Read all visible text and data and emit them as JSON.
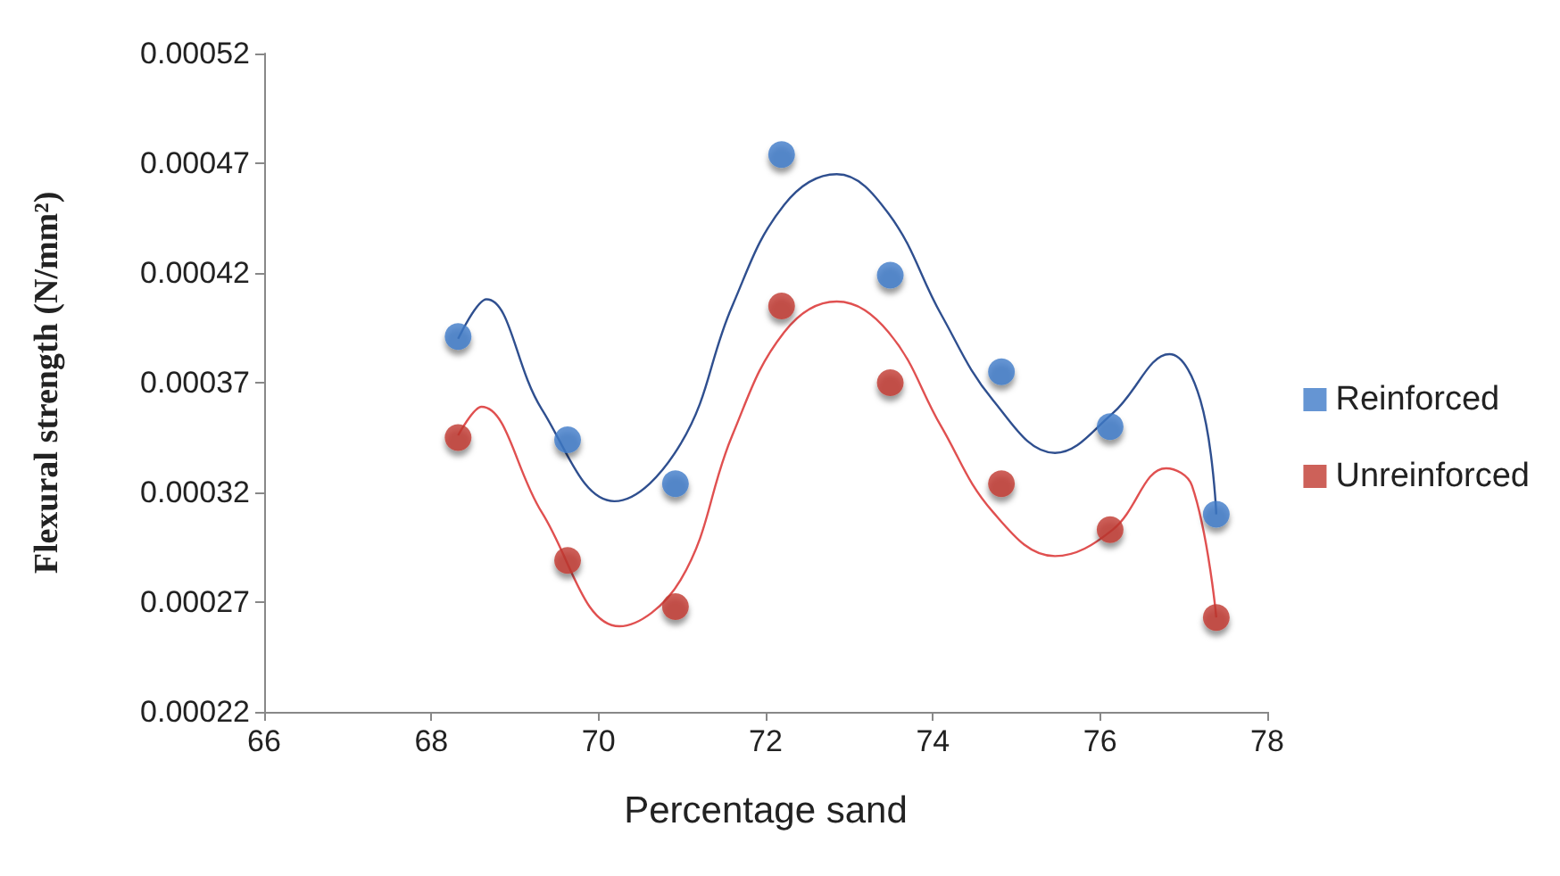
{
  "chart_data": {
    "type": "scatter",
    "xlabel": "Percentage sand",
    "ylabel": "Flexural strength (N/mm²)",
    "xlim": [
      66,
      78
    ],
    "xticks": [
      66,
      68,
      70,
      72,
      74,
      76,
      78
    ],
    "ylim": [
      0.00022,
      0.00052
    ],
    "yticks": [
      0.00022,
      0.00027,
      0.00032,
      0.00037,
      0.00042,
      0.00047,
      0.00052
    ],
    "grid": false,
    "legend": "right",
    "marker": "circle",
    "series": [
      {
        "name": "Reinforced",
        "color": "#3f7ac8",
        "x": [
          68.32,
          69.63,
          70.92,
          72.19,
          73.49,
          74.82,
          76.12,
          77.39
        ],
        "values": [
          0.000391,
          0.000344,
          0.000324,
          0.000474,
          0.000419,
          0.000375,
          0.00035,
          0.00031
        ]
      },
      {
        "name": "Unreinforced",
        "color": "#c0392f",
        "x": [
          68.32,
          69.63,
          70.92,
          72.19,
          73.49,
          74.82,
          76.12,
          77.39
        ],
        "values": [
          0.000345,
          0.000289,
          0.000268,
          0.000405,
          0.00037,
          0.000324,
          0.000303,
          0.000263
        ]
      },
      {
        "type": "line",
        "color": "#2f4f8f",
        "marker": "none",
        "x": [
          68.32,
          68.66,
          69.32,
          70.19,
          70.98,
          71.6,
          72.22,
          72.85,
          73.47,
          74.1,
          74.72,
          75.46,
          76.15,
          76.83,
          77.2,
          77.39
        ],
        "values": [
          0.00039,
          0.000408,
          0.000358,
          0.000316,
          0.000342,
          0.000405,
          0.000451,
          0.000465,
          0.000447,
          0.000401,
          0.000362,
          0.000338,
          0.000356,
          0.000383,
          0.000362,
          0.00031
        ]
      },
      {
        "type": "line",
        "color": "#e05050",
        "marker": "none",
        "x": [
          68.32,
          68.6,
          69.32,
          70.25,
          70.98,
          71.6,
          72.22,
          72.85,
          73.47,
          74.1,
          74.72,
          75.46,
          76.15,
          76.79,
          77.1,
          77.39
        ],
        "values": [
          0.000346,
          0.000359,
          0.000311,
          0.000259,
          0.00028,
          0.000346,
          0.000393,
          0.000407,
          0.000393,
          0.00035,
          0.000311,
          0.000291,
          0.000303,
          0.000331,
          0.000323,
          0.000263
        ]
      }
    ]
  }
}
